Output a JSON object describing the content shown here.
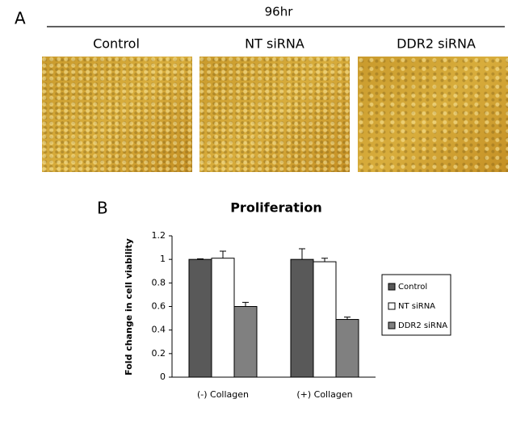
{
  "panel_a": {
    "label": "A",
    "time": "96hr",
    "columns": [
      "Control",
      "NT siRNA",
      "DDR2 siRNA"
    ]
  },
  "chart_data": {
    "type": "bar",
    "panel_label": "B",
    "title": "Proliferation",
    "y_label": "Fold change in cell viability",
    "categories": [
      "(-) Collagen",
      "(+) Collagen"
    ],
    "series": [
      {
        "name": "Control",
        "color": "#595959",
        "values": [
          1.0,
          1.0
        ],
        "errors": [
          0.005,
          0.09
        ]
      },
      {
        "name": "NT siRNA",
        "color": "#ffffff",
        "values": [
          1.01,
          0.98
        ],
        "errors": [
          0.06,
          0.03
        ]
      },
      {
        "name": "DDR2 siRNA",
        "color": "#808080",
        "values": [
          0.6,
          0.49
        ],
        "errors": [
          0.035,
          0.02
        ]
      }
    ],
    "ylim": [
      0,
      1.2
    ],
    "yticks": [
      0,
      0.2,
      0.4,
      0.6,
      0.8,
      1,
      1.2
    ],
    "grid": false,
    "legend": "right"
  }
}
